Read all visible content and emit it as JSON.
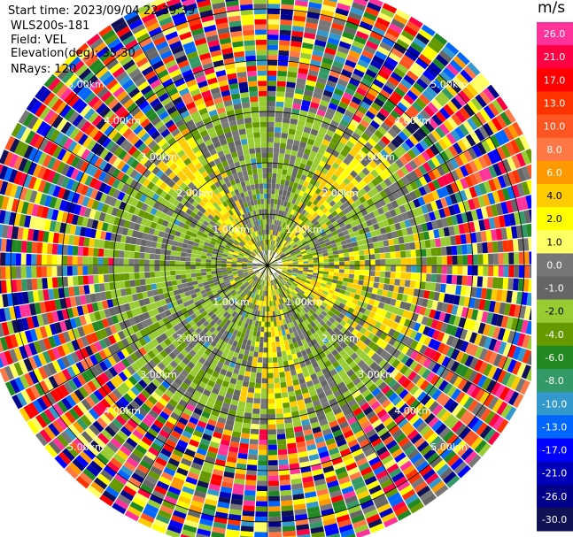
{
  "header": {
    "start_time": "Start time: 2023/09/04 22:39:39",
    "instrument": "WLS200s-181",
    "field": "Field: VEL",
    "elevation": "Elevation(deg): 35.30",
    "nrays": "NRays: 120"
  },
  "colorbar": {
    "unit": "m/s",
    "levels": [
      "26.0",
      "21.0",
      "17.0",
      "13.0",
      "10.0",
      "8.0",
      "6.0",
      "4.0",
      "2.0",
      "1.0",
      "0.0",
      "-1.0",
      "-2.0",
      "-4.0",
      "-6.0",
      "-8.0",
      "-10.0",
      "-13.0",
      "-17.0",
      "-21.0",
      "-26.0",
      "-30.0"
    ],
    "colors": [
      "#ff3399",
      "#ff0044",
      "#ff0000",
      "#ff3300",
      "#ff5522",
      "#ff7744",
      "#ff9900",
      "#ffcc00",
      "#ffff00",
      "#ffff66",
      "#777777",
      "#666666",
      "#99cc33",
      "#669900",
      "#228822",
      "#339966",
      "#3399cc",
      "#0066ff",
      "#0000ff",
      "#0000bb",
      "#000088",
      "#111155"
    ]
  },
  "chart_data": {
    "type": "heatmap",
    "projection": "polar PPI",
    "field": "VEL",
    "units": "m/s",
    "nrays": 120,
    "range_rings_km": [
      1.0,
      2.0,
      3.0,
      4.0,
      5.0
    ],
    "range_ring_labels": [
      "1.00km",
      "2.00km",
      "3.00km",
      "4.00km",
      "5.00km"
    ],
    "max_range_km": 5.6,
    "spokes_deg": [
      0,
      30,
      60,
      90,
      120,
      150,
      180,
      210,
      240,
      270,
      300,
      330
    ],
    "vmin": -30.0,
    "vmax": 26.0,
    "near_field_range_km": 3.0,
    "pattern": {
      "inner_background": "green (-4.0 to -1.0 m/s) with grey (-1.0 to 1.0 m/s)",
      "positive_patch_bearings_deg": [
        40,
        95,
        115,
        175,
        320
      ],
      "outer_range": "noise spanning the full colour scale"
    }
  }
}
